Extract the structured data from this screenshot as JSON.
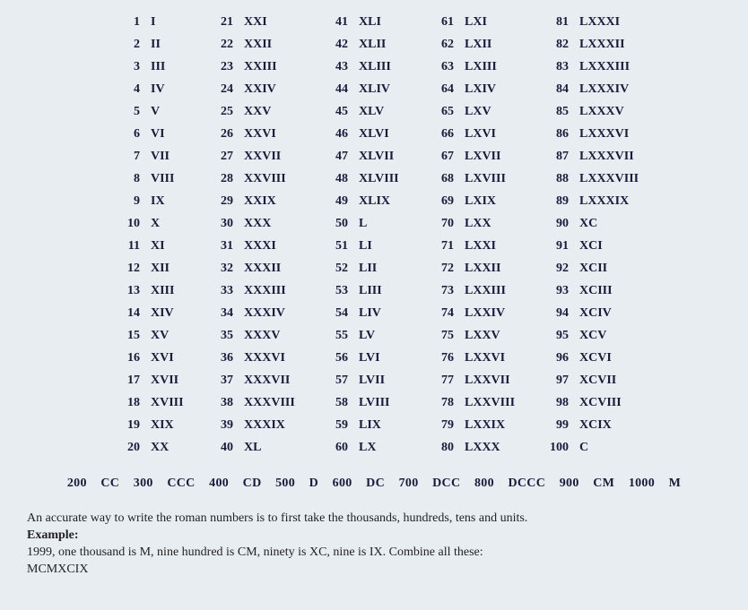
{
  "background_color": "#e8edf2",
  "text_color": "#1a1a3a",
  "font_family": "Georgia, Times New Roman, serif",
  "font_size": 14,
  "columns": [
    [
      {
        "n": "1",
        "r": "I"
      },
      {
        "n": "2",
        "r": "II"
      },
      {
        "n": "3",
        "r": "III"
      },
      {
        "n": "4",
        "r": "IV"
      },
      {
        "n": "5",
        "r": "V"
      },
      {
        "n": "6",
        "r": "VI"
      },
      {
        "n": "7",
        "r": "VII"
      },
      {
        "n": "8",
        "r": "VIII"
      },
      {
        "n": "9",
        "r": "IX"
      },
      {
        "n": "10",
        "r": "X"
      },
      {
        "n": "11",
        "r": "XI"
      },
      {
        "n": "12",
        "r": "XII"
      },
      {
        "n": "13",
        "r": "XIII"
      },
      {
        "n": "14",
        "r": "XIV"
      },
      {
        "n": "15",
        "r": "XV"
      },
      {
        "n": "16",
        "r": "XVI"
      },
      {
        "n": "17",
        "r": "XVII"
      },
      {
        "n": "18",
        "r": "XVIII"
      },
      {
        "n": "19",
        "r": "XIX"
      },
      {
        "n": "20",
        "r": "XX"
      }
    ],
    [
      {
        "n": "21",
        "r": "XXI"
      },
      {
        "n": "22",
        "r": "XXII"
      },
      {
        "n": "23",
        "r": "XXIII"
      },
      {
        "n": "24",
        "r": "XXIV"
      },
      {
        "n": "25",
        "r": "XXV"
      },
      {
        "n": "26",
        "r": "XXVI"
      },
      {
        "n": "27",
        "r": "XXVII"
      },
      {
        "n": "28",
        "r": "XXVIII"
      },
      {
        "n": "29",
        "r": "XXIX"
      },
      {
        "n": "30",
        "r": "XXX"
      },
      {
        "n": "31",
        "r": "XXXI"
      },
      {
        "n": "32",
        "r": "XXXII"
      },
      {
        "n": "33",
        "r": "XXXIII"
      },
      {
        "n": "34",
        "r": "XXXIV"
      },
      {
        "n": "35",
        "r": "XXXV"
      },
      {
        "n": "36",
        "r": "XXXVI"
      },
      {
        "n": "37",
        "r": "XXXVII"
      },
      {
        "n": "38",
        "r": "XXXVIII"
      },
      {
        "n": "39",
        "r": "XXXIX"
      },
      {
        "n": "40",
        "r": "XL"
      }
    ],
    [
      {
        "n": "41",
        "r": "XLI"
      },
      {
        "n": "42",
        "r": "XLII"
      },
      {
        "n": "43",
        "r": "XLIII"
      },
      {
        "n": "44",
        "r": "XLIV"
      },
      {
        "n": "45",
        "r": "XLV"
      },
      {
        "n": "46",
        "r": "XLVI"
      },
      {
        "n": "47",
        "r": "XLVII"
      },
      {
        "n": "48",
        "r": "XLVIII"
      },
      {
        "n": "49",
        "r": "XLIX"
      },
      {
        "n": "50",
        "r": "L"
      },
      {
        "n": "51",
        "r": "LI"
      },
      {
        "n": "52",
        "r": "LII"
      },
      {
        "n": "53",
        "r": "LIII"
      },
      {
        "n": "54",
        "r": "LIV"
      },
      {
        "n": "55",
        "r": "LV"
      },
      {
        "n": "56",
        "r": "LVI"
      },
      {
        "n": "57",
        "r": "LVII"
      },
      {
        "n": "58",
        "r": "LVIII"
      },
      {
        "n": "59",
        "r": "LIX"
      },
      {
        "n": "60",
        "r": "LX"
      }
    ],
    [
      {
        "n": "61",
        "r": "LXI"
      },
      {
        "n": "62",
        "r": "LXII"
      },
      {
        "n": "63",
        "r": "LXIII"
      },
      {
        "n": "64",
        "r": "LXIV"
      },
      {
        "n": "65",
        "r": "LXV"
      },
      {
        "n": "66",
        "r": "LXVI"
      },
      {
        "n": "67",
        "r": "LXVII"
      },
      {
        "n": "68",
        "r": "LXVIII"
      },
      {
        "n": "69",
        "r": "LXIX"
      },
      {
        "n": "70",
        "r": "LXX"
      },
      {
        "n": "71",
        "r": "LXXI"
      },
      {
        "n": "72",
        "r": "LXXII"
      },
      {
        "n": "73",
        "r": "LXXIII"
      },
      {
        "n": "74",
        "r": "LXXIV"
      },
      {
        "n": "75",
        "r": "LXXV"
      },
      {
        "n": "76",
        "r": "LXXVI"
      },
      {
        "n": "77",
        "r": "LXXVII"
      },
      {
        "n": "78",
        "r": "LXXVIII"
      },
      {
        "n": "79",
        "r": "LXXIX"
      },
      {
        "n": "80",
        "r": "LXXX"
      }
    ],
    [
      {
        "n": "81",
        "r": "LXXXI"
      },
      {
        "n": "82",
        "r": "LXXXII"
      },
      {
        "n": "83",
        "r": "LXXXIII"
      },
      {
        "n": "84",
        "r": "LXXXIV"
      },
      {
        "n": "85",
        "r": "LXXXV"
      },
      {
        "n": "86",
        "r": "LXXXVI"
      },
      {
        "n": "87",
        "r": "LXXXVII"
      },
      {
        "n": "88",
        "r": "LXXXVIII"
      },
      {
        "n": "89",
        "r": "LXXXIX"
      },
      {
        "n": "90",
        "r": "XC"
      },
      {
        "n": "91",
        "r": "XCI"
      },
      {
        "n": "92",
        "r": "XCII"
      },
      {
        "n": "93",
        "r": "XCIII"
      },
      {
        "n": "94",
        "r": "XCIV"
      },
      {
        "n": "95",
        "r": "XCV"
      },
      {
        "n": "96",
        "r": "XCVI"
      },
      {
        "n": "97",
        "r": "XCVII"
      },
      {
        "n": "98",
        "r": "XCVIII"
      },
      {
        "n": "99",
        "r": "XCIX"
      },
      {
        "n": "100",
        "r": "C"
      }
    ]
  ],
  "hundreds_row": [
    {
      "n": "200",
      "r": "CC"
    },
    {
      "n": "300",
      "r": "CCC"
    },
    {
      "n": "400",
      "r": "CD"
    },
    {
      "n": "500",
      "r": "D"
    },
    {
      "n": "600",
      "r": "DC"
    },
    {
      "n": "700",
      "r": "DCC"
    },
    {
      "n": "800",
      "r": "DCCC"
    },
    {
      "n": "900",
      "r": "CM"
    },
    {
      "n": "1000",
      "r": "M"
    }
  ],
  "explanation": {
    "intro": "An accurate way to write the roman numbers is to first take the thousands, hundreds, tens and units.",
    "example_label": "Example:",
    "example_text": "1999, one thousand is M, nine hundred is CM, ninety is XC, nine is IX. Combine all these:",
    "example_result": "MCMXCIX"
  }
}
